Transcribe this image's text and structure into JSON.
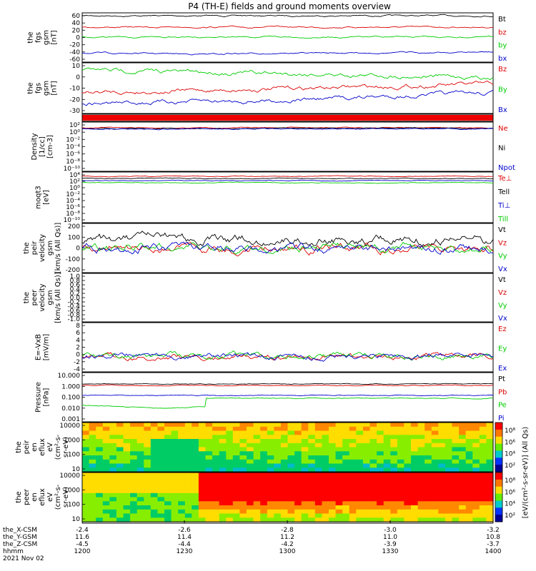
{
  "title": "P4 (TH-E) fields and ground moments overview",
  "panels": [
    {
      "id": "fgs-gsm",
      "ylabel": [
        "the",
        "fgs",
        "gsm",
        "[nT]"
      ],
      "ticks": [
        "60",
        "40",
        "20",
        "0",
        "-20",
        "-40",
        "-60"
      ],
      "legend": [
        {
          "t": "Bt",
          "c": "#000000"
        },
        {
          "t": "bz",
          "c": "#dd0000"
        },
        {
          "t": "by",
          "c": "#00cc00"
        },
        {
          "t": "bx",
          "c": "#0000cc"
        }
      ]
    },
    {
      "id": "fgs-gsm2",
      "ylabel": [
        "the",
        "fgs",
        "gsm",
        "[nT]"
      ],
      "ticks": [
        "10",
        "0",
        "-10",
        "-20",
        "-30"
      ],
      "legend": [
        {
          "t": "Bz",
          "c": "#dd0000"
        },
        {
          "t": "By",
          "c": "#00cc00"
        },
        {
          "t": "Bx",
          "c": "#0000cc"
        }
      ]
    },
    {
      "id": "flag",
      "ylabel": [],
      "ticks": [],
      "legend": []
    },
    {
      "id": "density",
      "ylabel": [
        "Density",
        "[1/cc]",
        "[cm-3]"
      ],
      "ticks": [
        "10²",
        "10⁰",
        "10⁻²",
        "10⁻⁴",
        "10⁻⁶",
        "10⁻⁸",
        "10⁻¹⁰"
      ],
      "legend": [
        {
          "t": "Ne",
          "c": "#dd0000"
        },
        {
          "t": "Ni",
          "c": "#000000"
        },
        {
          "t": "Npot",
          "c": "#0000cc"
        }
      ]
    },
    {
      "id": "temp",
      "ylabel": [
        "moqt3",
        "[eV]"
      ],
      "ticks": [
        "10⁴",
        "10²",
        "10⁰",
        "10⁻²",
        "10⁻⁴",
        "10⁻⁶",
        "10⁻⁸",
        "10⁻¹⁰"
      ],
      "legend": [
        {
          "t": "Te⊥",
          "c": "#dd0000"
        },
        {
          "t": "Tell",
          "c": "#000000"
        },
        {
          "t": "Ti⊥",
          "c": "#0000cc"
        },
        {
          "t": "Till",
          "c": "#00cc00"
        }
      ]
    },
    {
      "id": "pvel",
      "ylabel": [
        "the",
        "peir",
        "velocity",
        "gsm",
        "[km/s (All Qs)]"
      ],
      "ticks": [
        "200",
        "100",
        "0",
        "-100",
        "-200"
      ],
      "legend": [
        {
          "t": "Vt",
          "c": "#000000"
        },
        {
          "t": "Vz",
          "c": "#dd0000"
        },
        {
          "t": "Vy",
          "c": "#00cc00"
        },
        {
          "t": "Vx",
          "c": "#0000cc"
        }
      ]
    },
    {
      "id": "evel",
      "ylabel": [
        "the",
        "peer",
        "velocity",
        "gsm",
        "[km/s (All Qs)]"
      ],
      "ticks": [
        "1.0",
        "0.8",
        "0.6",
        "0.4",
        "0.2",
        "0.0",
        "-0.2",
        "-0.4",
        "-0.6",
        "-0.8",
        "-1.0"
      ],
      "legend": [
        {
          "t": "Vt",
          "c": "#000000"
        },
        {
          "t": "Vz",
          "c": "#dd0000"
        },
        {
          "t": "Vy",
          "c": "#00cc00"
        },
        {
          "t": "Vx",
          "c": "#0000cc"
        }
      ]
    },
    {
      "id": "efield",
      "ylabel": [
        "E=-VxB",
        "[mV/m]"
      ],
      "ticks": [
        "8",
        "6",
        "4",
        "2",
        "0",
        "-2",
        "-4"
      ],
      "legend": [
        {
          "t": "Ez",
          "c": "#dd0000"
        },
        {
          "t": "Ey",
          "c": "#00cc00"
        },
        {
          "t": "Ex",
          "c": "#0000cc"
        }
      ]
    },
    {
      "id": "pressure",
      "ylabel": [
        "Pressure",
        "[nPa]"
      ],
      "ticks": [
        "10.000",
        "1.000",
        "0.100",
        "0.010",
        "0.001"
      ],
      "legend": [
        {
          "t": "Pt",
          "c": "#000000"
        },
        {
          "t": "Pb",
          "c": "#dd0000"
        },
        {
          "t": "Pe",
          "c": "#00cc00"
        },
        {
          "t": "Pi",
          "c": "#0000cc"
        }
      ]
    },
    {
      "id": "peir-spec",
      "ylabel": [
        "the",
        "peir",
        "en",
        "eflux",
        "eV",
        "(cm²-s-",
        "sr-eV)"
      ],
      "ticks": [
        "10000",
        "1000",
        "100",
        "10"
      ],
      "legend": []
    },
    {
      "id": "peer-spec",
      "ylabel": [
        "the",
        "peer",
        "en",
        "eflux",
        "eV",
        "(cm²-s-",
        "sr-eV)"
      ],
      "ticks": [
        "10000",
        "1000",
        "100",
        "10"
      ],
      "legend": []
    }
  ],
  "colorbar": {
    "label": "[eV/(cm²-s-sr-eV)] (All Qs)",
    "ticks_upper": [
      "10⁸",
      "10⁶",
      "10⁴",
      "10²"
    ],
    "ticks_lower": [
      "10⁸",
      "10⁶",
      "10⁴",
      "10²"
    ]
  },
  "xaxis": {
    "rows": [
      {
        "label": "the_X-CSM",
        "values": [
          "-2.4",
          "-2.6",
          "-2.8",
          "-3.0",
          "-3.2"
        ]
      },
      {
        "label": "the_Y-GSM",
        "values": [
          "11.6",
          "11.4",
          "11.2",
          "11.0",
          "10.8"
        ]
      },
      {
        "label": "the_Z-CSM",
        "values": [
          "-4.5",
          "-4.4",
          "-4.2",
          "-3.9",
          "-3.7"
        ]
      },
      {
        "label": "hhmm",
        "values": [
          "1200",
          "1230",
          "1300",
          "1330",
          "1400"
        ]
      }
    ],
    "date": "2021 Nov 02"
  }
}
